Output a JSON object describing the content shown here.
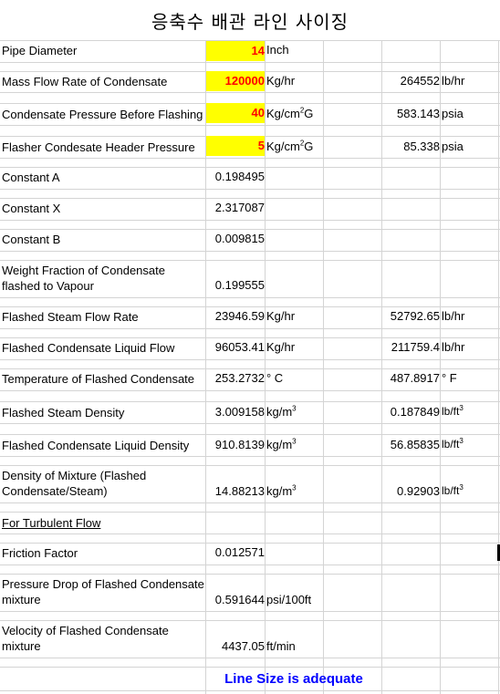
{
  "title": "응축수 배관 라인 사이징",
  "rows": {
    "pipe_diameter": {
      "label": "Pipe Diameter",
      "value": "14",
      "unit": "Inch"
    },
    "mass_flow": {
      "label": "Mass Flow Rate of Condensate",
      "value": "120000",
      "unit": "Kg/hr",
      "value2": "264552",
      "unit2": "lb/hr"
    },
    "cond_pressure": {
      "label": "Condensate Pressure Before Flashing",
      "value": "40",
      "unit": "Kg/cm",
      "unit_sup": "2",
      "unit_suffix": "G",
      "value2": "583.143",
      "unit2": "psia"
    },
    "flasher_pressure": {
      "label": "Flasher Condesate Header Pressure",
      "value": "5",
      "unit": "Kg/cm",
      "unit_sup": "2",
      "unit_suffix": "G",
      "value2": "85.338",
      "unit2": "psia"
    },
    "constant_a": {
      "label": "Constant A",
      "value": "0.198495"
    },
    "constant_x": {
      "label": "Constant X",
      "value": "2.317087"
    },
    "constant_b": {
      "label": "Constant B",
      "value": "0.009815"
    },
    "weight_fraction": {
      "label_line1": "Weight Fraction of  Condensate",
      "label_line2": "flashed to Vapour",
      "value": "0.199555"
    },
    "steam_flow": {
      "label": "Flashed Steam Flow Rate",
      "value": "23946.59",
      "unit": "Kg/hr",
      "value2": "52792.65",
      "unit2": "lb/hr"
    },
    "liquid_flow": {
      "label": "Flashed Condensate Liquid Flow",
      "value": "96053.41",
      "unit": "Kg/hr",
      "value2": "211759.4",
      "unit2": "lb/hr"
    },
    "temperature": {
      "label": "Temperature of Flashed Condensate",
      "value": "253.2732",
      "unit": "° C",
      "value2": "487.8917",
      "unit2": "° F"
    },
    "steam_density": {
      "label": "Flashed Steam Density",
      "value": "3.009158",
      "unit": "kg/m",
      "unit_sup": "3",
      "value2": "0.187849",
      "unit2": "lb/ft",
      "unit2_sup": "3"
    },
    "liquid_density": {
      "label": "Flashed Condensate Liquid Density",
      "value": "910.8139",
      "unit": "kg/m",
      "unit_sup": "3",
      "value2": "56.85835",
      "unit2": "lb/ft",
      "unit2_sup": "3"
    },
    "mixture_density": {
      "label_line1": "Density of Mixture (Flashed",
      "label_line2": "Condensate/Steam)",
      "value": "14.88213",
      "unit": "kg/m",
      "unit_sup": "3",
      "value2": "0.92903",
      "unit2": "lb/ft",
      "unit2_sup": "3"
    },
    "turbulent": {
      "label": "For Turbulent Flow"
    },
    "friction": {
      "label": "Friction Factor",
      "value": "0.012571"
    },
    "pressure_drop": {
      "label_line1": "Pressure Drop of Flashed Condensate",
      "label_line2": "mixture",
      "value": "0.591644",
      "unit": "psi/100ft"
    },
    "velocity": {
      "label_line1": "Velocity of Flashed Condensate",
      "label_line2": "mixture",
      "value": "4437.05",
      "unit": "ft/min"
    }
  },
  "result": "Line Size is adequate",
  "colors": {
    "highlight_bg": "#ffff00",
    "highlight_text": "#ff0000",
    "result_text": "#0000ff",
    "grid": "#d4d4d4"
  }
}
